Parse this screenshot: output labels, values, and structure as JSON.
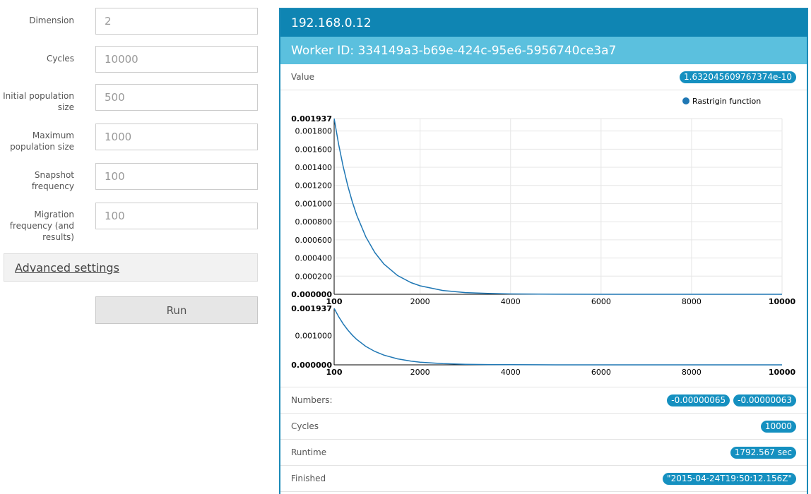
{
  "form": {
    "fields": [
      {
        "label": "Dimension",
        "value": "2"
      },
      {
        "label": "Cycles",
        "value": "10000"
      },
      {
        "label": "Initial population size",
        "value": "500"
      },
      {
        "label": "Maximum population size",
        "value": "1000"
      },
      {
        "label": "Snapshot frequency",
        "value": "100"
      },
      {
        "label": "Migration frequency (and results)",
        "value": "100"
      }
    ],
    "advanced_label": "Advanced settings",
    "run_label": "Run"
  },
  "panel": {
    "host": "192.168.0.12",
    "worker": "Worker ID: 334149a3-b69e-424c-95e6-5956740ce3a7",
    "value_label": "Value",
    "value_badge": "1.632045609767374e-10",
    "numbers_label": "Numbers:",
    "numbers": [
      "-0.00000065",
      "-0.00000063"
    ],
    "cycles_label": "Cycles",
    "cycles_value": "10000",
    "runtime_label": "Runtime",
    "runtime_value": "1792.567 sec",
    "finished_label": "Finished",
    "finished_value": "\"2015-04-24T19:50:12.156Z\""
  },
  "colors": {
    "header": "#0f85b3",
    "subheader": "#5bc0de",
    "badge": "#1590c0",
    "series": "#1f77b4"
  },
  "chart_data": {
    "type": "line",
    "legend_position": "top-right",
    "series": [
      {
        "name": "Rastrigin function",
        "x": [
          100,
          200,
          300,
          400,
          500,
          600,
          800,
          1000,
          1200,
          1500,
          1800,
          2000,
          2500,
          3000,
          3500,
          4000,
          5000,
          6000,
          8000,
          10000
        ],
        "y": [
          0.001937,
          0.001651,
          0.001407,
          0.001199,
          0.001022,
          0.000871,
          0.000633,
          0.00046,
          0.000334,
          0.000207,
          0.000128,
          9.3e-05,
          4.2e-05,
          1.9e-05,
          9e-06,
          4e-06,
          1e-06,
          2e-07,
          1e-08,
          0.0
        ]
      }
    ],
    "main": {
      "xlim": [
        100,
        10000
      ],
      "ylim": [
        0,
        0.001937
      ],
      "x_ticks": [
        "100",
        "2000",
        "4000",
        "6000",
        "8000",
        "10000"
      ],
      "x_tick_values": [
        100,
        2000,
        4000,
        6000,
        8000,
        10000
      ],
      "y_ticks": [
        "0.000000",
        "0.000200",
        "0.000400",
        "0.000600",
        "0.000800",
        "0.001000",
        "0.001200",
        "0.001400",
        "0.001600",
        "0.001800",
        "0.001937"
      ],
      "y_tick_values": [
        0,
        0.0002,
        0.0004,
        0.0006,
        0.0008,
        0.001,
        0.0012,
        0.0014,
        0.0016,
        0.0018,
        0.001937
      ],
      "grid": true
    },
    "overview": {
      "xlim": [
        100,
        10000
      ],
      "ylim": [
        0,
        0.001937
      ],
      "x_ticks": [
        "100",
        "2000",
        "4000",
        "6000",
        "8000",
        "10000"
      ],
      "x_tick_values": [
        100,
        2000,
        4000,
        6000,
        8000,
        10000
      ],
      "y_ticks": [
        "0.000000",
        "0.001000",
        "0.001937"
      ],
      "y_tick_values": [
        0,
        0.001,
        0.001937
      ],
      "grid": false
    }
  }
}
